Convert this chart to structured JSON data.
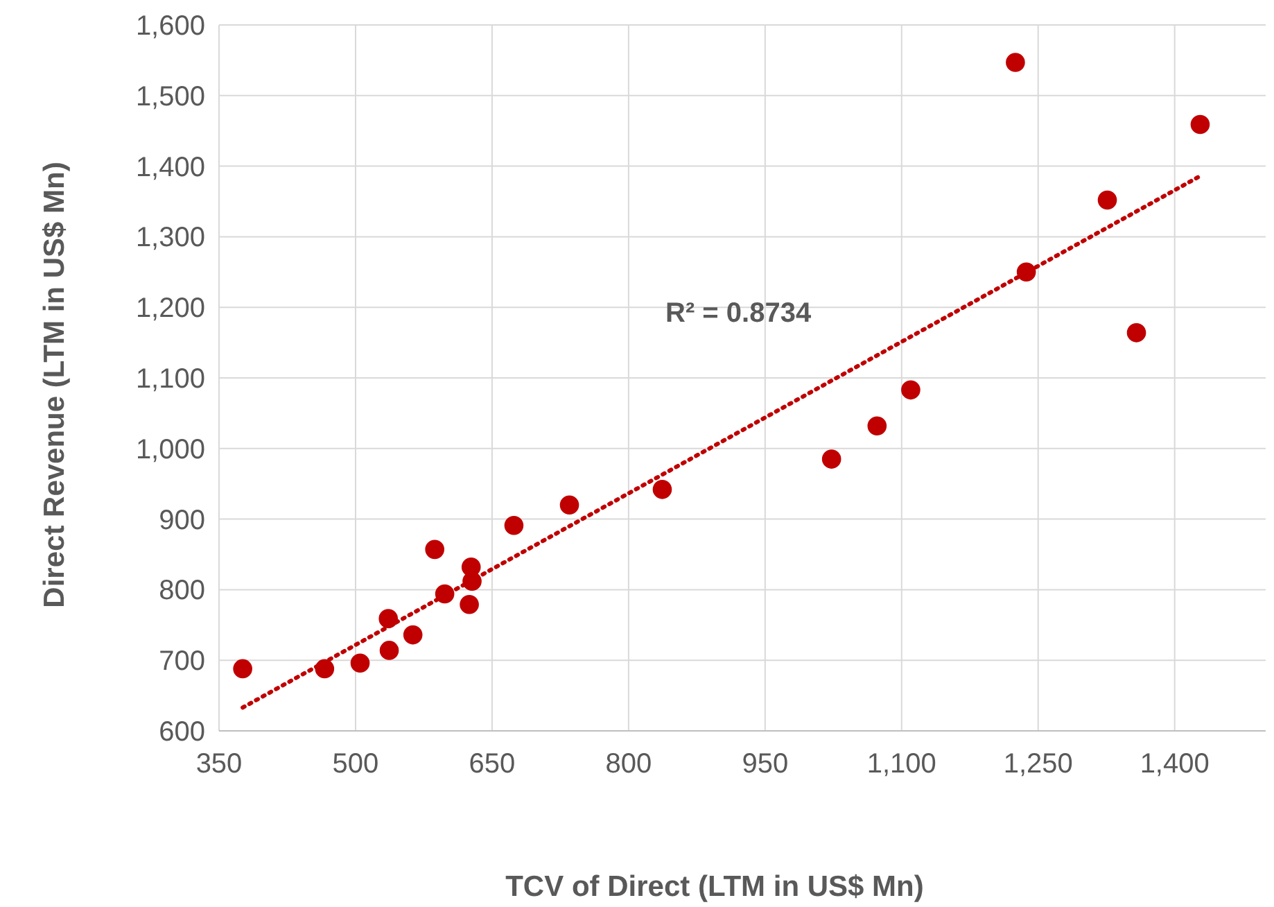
{
  "chart_data": {
    "type": "scatter",
    "xlabel": "TCV of Direct (LTM in US$ Mn)",
    "ylabel": "Direct Revenue (LTM in US$ Mn)",
    "xlim": [
      350,
      1500
    ],
    "xticks": [
      350,
      500,
      650,
      800,
      950,
      {
        "value": 1100,
        "label": "1,100"
      },
      {
        "value": 1250,
        "label": "1,250"
      },
      {
        "value": 1400,
        "label": "1,400"
      }
    ],
    "ylim": [
      600,
      1600
    ],
    "yticks": [
      600,
      700,
      800,
      900,
      {
        "value": 1000,
        "label": "1,000"
      },
      {
        "value": 1100,
        "label": "1,100"
      },
      {
        "value": 1200,
        "label": "1,200"
      },
      {
        "value": 1300,
        "label": "1,300"
      },
      {
        "value": 1400,
        "label": "1,400"
      },
      {
        "value": 1500,
        "label": "1,500"
      },
      {
        "value": 1600,
        "label": "1,600"
      }
    ],
    "grid": true,
    "annotations": [
      "R² = 0.8734"
    ],
    "series": [
      {
        "color": "#c00000",
        "marker": "circle",
        "x": [
          376,
          466,
          505,
          536,
          537,
          563,
          587,
          598,
          627,
          628,
          625,
          674,
          735,
          837,
          1023,
          1073,
          1110,
          1225,
          1237,
          1326,
          1358,
          1428
        ],
        "values": [
          688,
          688,
          696,
          759,
          714,
          736,
          857,
          794,
          832,
          812,
          779,
          891,
          920,
          942,
          985,
          1032,
          1083,
          1547,
          1250,
          1352,
          1164,
          1459
        ]
      },
      {
        "type": "line",
        "color": "#c00000",
        "line_style": "dotted",
        "marker": "none",
        "x": [
          376,
          1428
        ],
        "values": [
          633,
          1386
        ]
      }
    ]
  }
}
